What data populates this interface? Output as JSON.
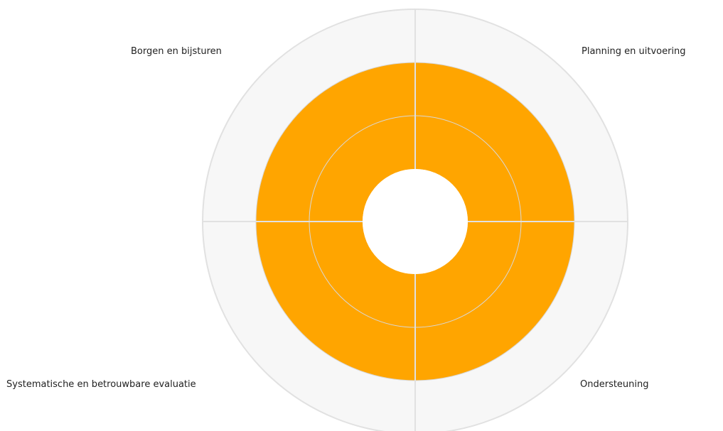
{
  "chart_data": {
    "type": "polar-area",
    "categories": [
      "Planning en uitvoering",
      "Ondersteuning",
      "Systematische en betrouwbare evaluatie",
      "Borgen en bijsturen"
    ],
    "values": [
      3,
      3,
      3,
      3
    ],
    "inner_radius": 1,
    "rlim": [
      1,
      4
    ],
    "ring_levels": [
      2,
      3
    ],
    "grid": true,
    "colors": {
      "fill": "#FFA500",
      "background": "#F7F7F7",
      "grid": "#E1E1E1",
      "inner_grid": "#D8D8D8",
      "hole": "#FFFFFF"
    }
  }
}
